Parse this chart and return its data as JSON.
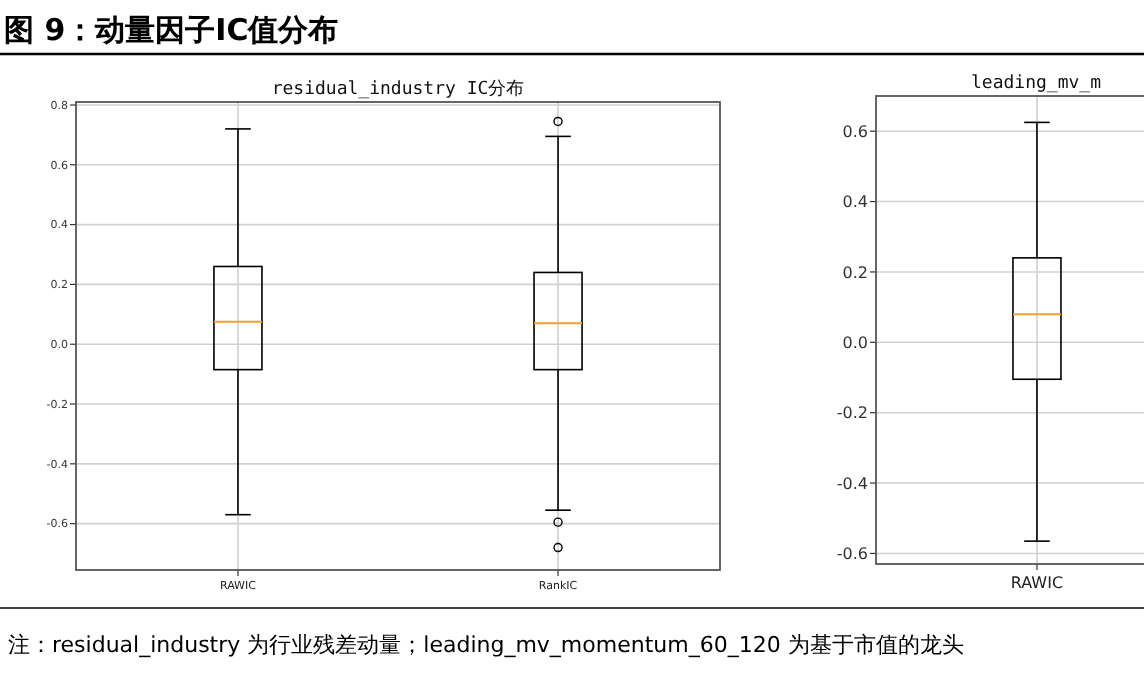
{
  "chart_data": [
    {
      "type": "box",
      "title": "residual_industry IC分布",
      "categories": [
        "RAWIC",
        "RankIC"
      ],
      "ylim": [
        -0.755,
        0.81
      ],
      "yticks": [
        -0.6,
        -0.4,
        -0.2,
        {
          "value": 0,
          "label": "0.0"
        },
        0.2,
        0.4,
        0.6,
        0.8
      ],
      "grid": true,
      "color": "#000000",
      "boxes": [
        {
          "low": -0.57,
          "q1": -0.085,
          "median": 0.075,
          "q3": 0.26,
          "high": 0.72
        },
        {
          "low": -0.555,
          "q1": -0.085,
          "median": 0.07,
          "q3": 0.24,
          "high": 0.695,
          "outliers": [
            0.745,
            -0.595,
            -0.68
          ]
        }
      ],
      "annotations": [
        "图 9：动量因子IC值分布",
        "注：residual_industry 为行业残差动量；leading_mv_momentum_60_120 为基于市值的龙头"
      ]
    },
    {
      "type": "box",
      "title": "leading_mv_m",
      "categories": [
        "RAWIC"
      ],
      "ylim": [
        -0.63,
        0.7
      ],
      "yticks": [
        -0.6,
        -0.4,
        -0.2,
        {
          "value": 0,
          "label": "0.0"
        },
        0.2,
        0.4,
        0.6
      ],
      "grid": true,
      "color": "#000000",
      "boxes": [
        {
          "low": -0.565,
          "q1": -0.105,
          "median": 0.08,
          "q3": 0.24,
          "high": 0.625
        }
      ]
    }
  ]
}
